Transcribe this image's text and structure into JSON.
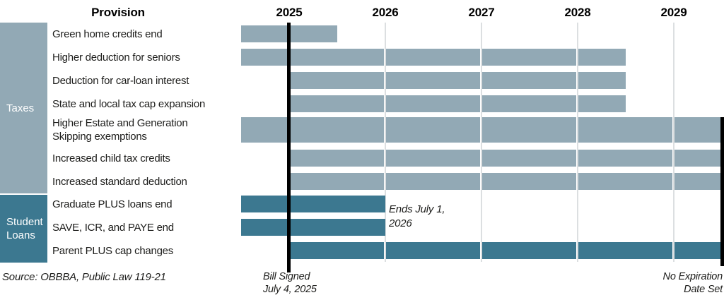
{
  "chart_data": {
    "type": "gantt",
    "title": "",
    "row_axis_label": "Provision",
    "x_axis": {
      "tick_labels": [
        "2025",
        "2026",
        "2027",
        "2028",
        "2029"
      ],
      "tick_values": [
        2025.5,
        2026.5,
        2027.5,
        2028.5,
        2029.5
      ],
      "range": [
        2025.0,
        2030.0
      ],
      "gridlines_at": [
        2026.5,
        2027.5,
        2028.5,
        2029.5
      ],
      "grid": true
    },
    "groups": [
      {
        "label": "Taxes",
        "color": "#92a9b5"
      },
      {
        "label": "Student Loans",
        "color": "#3c7890"
      }
    ],
    "rows": [
      {
        "group": "Taxes",
        "label": "Green home credits end",
        "start": 2025.0,
        "end": 2026.0,
        "no_expiration": false
      },
      {
        "group": "Taxes",
        "label": "Higher deduction for seniors",
        "start": 2025.0,
        "end": 2029.0,
        "no_expiration": false
      },
      {
        "group": "Taxes",
        "label": "Deduction for car-loan interest",
        "start": 2025.5,
        "end": 2029.0,
        "no_expiration": false
      },
      {
        "group": "Taxes",
        "label": "State and local tax cap expansion",
        "start": 2025.5,
        "end": 2029.0,
        "no_expiration": false
      },
      {
        "group": "Taxes",
        "label": "Higher Estate and Generation Skipping exemptions",
        "label_lines": [
          "Higher Estate and Generation",
          "Skipping exemptions"
        ],
        "start": 2025.0,
        "end": null,
        "no_expiration": true
      },
      {
        "group": "Taxes",
        "label": "Increased child tax credits",
        "start": 2025.5,
        "end": null,
        "no_expiration": true
      },
      {
        "group": "Taxes",
        "label": "Increased standard deduction",
        "start": 2025.5,
        "end": null,
        "no_expiration": true
      },
      {
        "group": "Student Loans",
        "label": "Graduate PLUS loans end",
        "start": 2025.0,
        "end": 2026.5,
        "no_expiration": false
      },
      {
        "group": "Student Loans",
        "label": "SAVE, ICR, and PAYE end",
        "start": 2025.0,
        "end": 2026.5,
        "no_expiration": false
      },
      {
        "group": "Student Loans",
        "label": "Parent PLUS cap changes",
        "start": 2025.5,
        "end": null,
        "no_expiration": true
      }
    ],
    "annotations": {
      "ends_july": {
        "line1": "Ends July 1,",
        "line2": "2026"
      },
      "bill_signed": {
        "line1": "Bill Signed",
        "line2": "July 4, 2025",
        "marker_value": 2025.5
      },
      "no_expiration": {
        "line1": "No Expiration",
        "line2": "Date Set",
        "marker_value": 2030.0
      }
    }
  },
  "source_note": "Source: OBBBA, Public Law 119-21",
  "colors": {
    "taxes_bar": "#92a9b5",
    "student_loans_bar": "#3c7890",
    "gridline": "#dcdfe1",
    "marker_line": "#000000",
    "label_text": "#1d1d1b",
    "sidebar_text": "#ffffff"
  }
}
